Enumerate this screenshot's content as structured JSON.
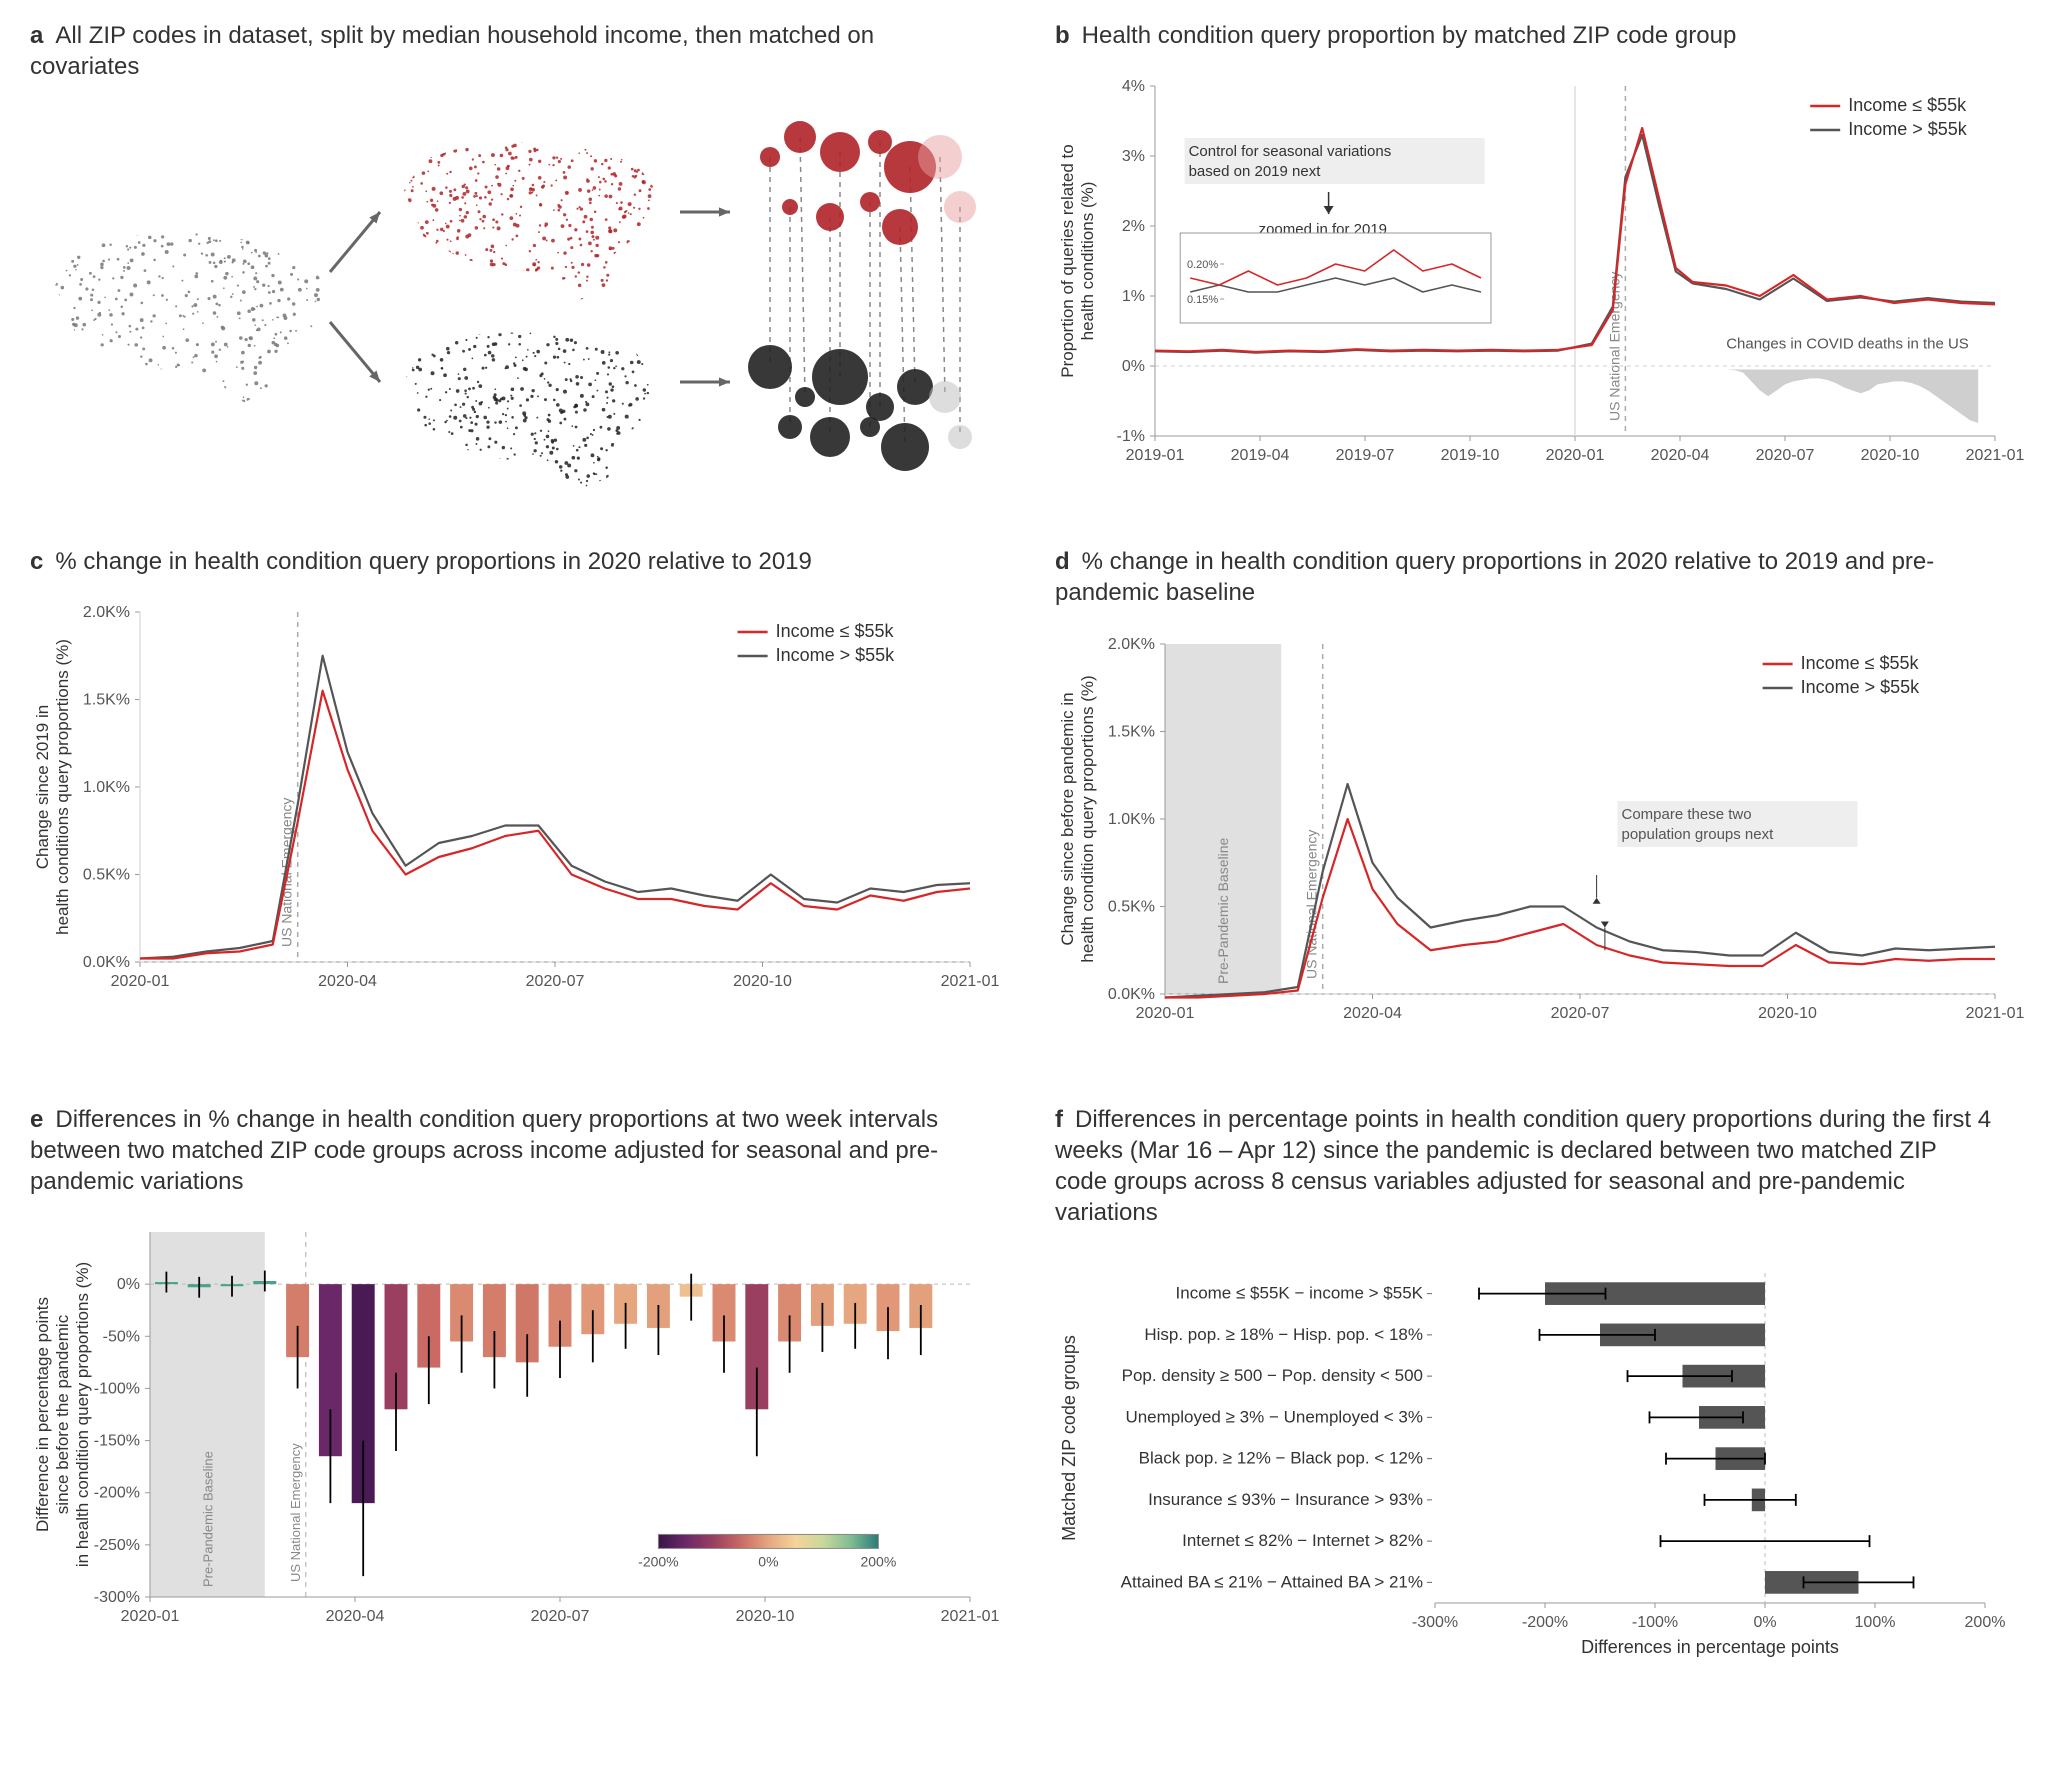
{
  "panels": {
    "a": {
      "label": "a",
      "title": "All ZIP codes in dataset, split by median household income, then matched on covariates"
    },
    "b": {
      "label": "b",
      "title": "Health condition query proportion by matched ZIP code group"
    },
    "c": {
      "label": "c",
      "title": "% change in health condition query proportions in 2020 relative to 2019"
    },
    "d": {
      "label": "d",
      "title": "% change in health condition query proportions in 2020 relative to 2019 and pre-pandemic baseline"
    },
    "e": {
      "label": "e",
      "title": "Differences in % change in health condition query proportions at two week intervals between two matched ZIP code groups across income adjusted for seasonal and pre-pandemic variations"
    },
    "f": {
      "label": "f",
      "title": "Differences in percentage points in health condition query proportions during the first 4 weeks (Mar 16 – Apr 12) since the pandemic is declared between two matched ZIP code groups across 8 census variables adjusted for seasonal and pre-pandemic variations"
    }
  },
  "colors": {
    "red": "#d62728",
    "gray_line": "#555555",
    "bg": "#ffffff",
    "axis": "#333333",
    "grid": "#cccccc",
    "shade": "#d3d3d3",
    "map_gray": "#777777",
    "map_red": "#b02428",
    "map_dark": "#222222",
    "annotation_bg": "#eeeeee",
    "covid_area": "#bbbbbb"
  },
  "legend": {
    "low": "Income ≤ $55k",
    "high": "Income > $55k"
  },
  "emergency_label": "US National Emergency",
  "baseline_label": "Pre-Pandemic Baseline",
  "panel_b": {
    "ylabel": "Proportion of queries related to health conditions (%)",
    "ylim": [
      -1,
      4
    ],
    "yticks": [
      "-1%",
      "0%",
      "1%",
      "2%",
      "3%",
      "4%"
    ],
    "xticks": [
      "2019-01",
      "2019-04",
      "2019-07",
      "2019-10",
      "2020-01",
      "2020-04",
      "2020-07",
      "2020-10",
      "2021-01"
    ],
    "annotation1": "Control for seasonal variations based on 2019 next",
    "annotation2": "zoomed in for 2019",
    "inset_yticks": [
      "0.15%",
      "0.20%"
    ],
    "covid_note": "Changes in COVID deaths in the US",
    "x": [
      0,
      0.04,
      0.08,
      0.12,
      0.16,
      0.2,
      0.24,
      0.28,
      0.32,
      0.36,
      0.4,
      0.44,
      0.48,
      0.52,
      0.545,
      0.56,
      0.58,
      0.6,
      0.62,
      0.64,
      0.68,
      0.72,
      0.76,
      0.8,
      0.84,
      0.88,
      0.92,
      0.96,
      1.0
    ],
    "low": [
      0.22,
      0.21,
      0.23,
      0.2,
      0.22,
      0.21,
      0.24,
      0.22,
      0.23,
      0.22,
      0.23,
      0.22,
      0.23,
      0.3,
      0.8,
      2.6,
      3.4,
      2.4,
      1.4,
      1.2,
      1.15,
      1.0,
      1.3,
      0.95,
      1.0,
      0.9,
      0.95,
      0.9,
      0.88
    ],
    "high": [
      0.21,
      0.2,
      0.22,
      0.19,
      0.21,
      0.2,
      0.23,
      0.21,
      0.22,
      0.21,
      0.22,
      0.21,
      0.22,
      0.32,
      0.85,
      2.7,
      3.3,
      2.3,
      1.35,
      1.18,
      1.1,
      0.95,
      1.25,
      0.93,
      0.98,
      0.92,
      0.97,
      0.92,
      0.9
    ],
    "inset": {
      "x": [
        0,
        0.1,
        0.2,
        0.3,
        0.4,
        0.5,
        0.6,
        0.7,
        0.8,
        0.9,
        1.0
      ],
      "low": [
        0.18,
        0.17,
        0.19,
        0.17,
        0.18,
        0.2,
        0.19,
        0.22,
        0.19,
        0.2,
        0.18
      ],
      "high": [
        0.16,
        0.17,
        0.16,
        0.16,
        0.17,
        0.18,
        0.17,
        0.18,
        0.16,
        0.17,
        0.16
      ]
    },
    "emergency_x": 0.56,
    "covid_dx": 0.01,
    "covid": [
      0,
      0,
      0,
      0,
      0,
      0,
      0,
      0,
      0,
      0,
      0,
      0,
      0,
      0.5,
      2,
      8,
      14,
      18,
      14,
      10,
      8,
      7,
      6,
      6,
      7,
      9,
      12,
      14,
      16,
      14,
      10,
      9,
      8,
      8,
      9,
      11,
      14,
      18,
      22,
      26,
      30,
      34,
      36
    ]
  },
  "panel_c": {
    "ylabel": "Change since 2019 in health conditions query proportions (%)",
    "ylim": [
      0,
      2.0
    ],
    "yticks": [
      "0.0K%",
      "0.5K%",
      "1.0K%",
      "1.5K%",
      "2.0K%"
    ],
    "xticks": [
      "2020-01",
      "2020-04",
      "2020-07",
      "2020-10",
      "2021-01"
    ],
    "emergency_x": 0.19,
    "x": [
      0,
      0.04,
      0.08,
      0.12,
      0.16,
      0.19,
      0.22,
      0.25,
      0.28,
      0.32,
      0.36,
      0.4,
      0.44,
      0.48,
      0.52,
      0.56,
      0.6,
      0.64,
      0.68,
      0.72,
      0.76,
      0.8,
      0.84,
      0.88,
      0.92,
      0.96,
      1.0
    ],
    "low": [
      0.02,
      0.02,
      0.05,
      0.06,
      0.1,
      0.8,
      1.55,
      1.1,
      0.75,
      0.5,
      0.6,
      0.65,
      0.72,
      0.75,
      0.5,
      0.42,
      0.36,
      0.36,
      0.32,
      0.3,
      0.45,
      0.32,
      0.3,
      0.38,
      0.35,
      0.4,
      0.42
    ],
    "high": [
      0.02,
      0.03,
      0.06,
      0.08,
      0.12,
      0.9,
      1.75,
      1.2,
      0.85,
      0.55,
      0.68,
      0.72,
      0.78,
      0.78,
      0.55,
      0.46,
      0.4,
      0.42,
      0.38,
      0.35,
      0.5,
      0.36,
      0.34,
      0.42,
      0.4,
      0.44,
      0.45
    ]
  },
  "panel_d": {
    "ylabel": "Change since before pandemic in health condition query proportions (%)",
    "ylim": [
      0,
      2.0
    ],
    "yticks": [
      "0.0K%",
      "0.5K%",
      "1.0K%",
      "1.5K%",
      "2.0K%"
    ],
    "xticks": [
      "2020-01",
      "2020-04",
      "2020-07",
      "2020-10",
      "2021-01"
    ],
    "annotation": "Compare these two population groups next",
    "baseline_range": [
      0.0,
      0.14
    ],
    "emergency_x": 0.19,
    "x": [
      0,
      0.04,
      0.08,
      0.12,
      0.16,
      0.19,
      0.22,
      0.25,
      0.28,
      0.32,
      0.36,
      0.4,
      0.44,
      0.48,
      0.52,
      0.56,
      0.6,
      0.64,
      0.68,
      0.72,
      0.76,
      0.8,
      0.84,
      0.88,
      0.92,
      0.96,
      1.0
    ],
    "low": [
      -0.02,
      -0.02,
      -0.01,
      0.0,
      0.02,
      0.55,
      1.0,
      0.6,
      0.4,
      0.25,
      0.28,
      0.3,
      0.35,
      0.4,
      0.28,
      0.22,
      0.18,
      0.17,
      0.16,
      0.16,
      0.28,
      0.18,
      0.17,
      0.2,
      0.19,
      0.2,
      0.2
    ],
    "high": [
      -0.02,
      -0.01,
      0.0,
      0.01,
      0.04,
      0.7,
      1.2,
      0.75,
      0.55,
      0.38,
      0.42,
      0.45,
      0.5,
      0.5,
      0.38,
      0.3,
      0.25,
      0.24,
      0.22,
      0.22,
      0.35,
      0.24,
      0.22,
      0.26,
      0.25,
      0.26,
      0.27
    ]
  },
  "panel_e": {
    "ylabel": "Difference in percentage points since before the pandemic in health condition query proportions (%)",
    "ylim": [
      -300,
      50
    ],
    "yticks": [
      "-300%",
      "-250%",
      "-200%",
      "-150%",
      "-100%",
      "-50%",
      "0%"
    ],
    "xticks": [
      "2020-01",
      "2020-04",
      "2020-07",
      "2020-10",
      "2021-01"
    ],
    "baseline_range": [
      0.0,
      0.14
    ],
    "emergency_x": 0.19,
    "colorbar_ticks": [
      "-200%",
      "0%",
      "200%"
    ],
    "bars": [
      {
        "x": 0.02,
        "v": 2,
        "lo": -8,
        "hi": 12,
        "c": "#4aa28a"
      },
      {
        "x": 0.06,
        "v": -3,
        "lo": -13,
        "hi": 7,
        "c": "#4aa28a"
      },
      {
        "x": 0.1,
        "v": -2,
        "lo": -12,
        "hi": 8,
        "c": "#4aa28a"
      },
      {
        "x": 0.14,
        "v": 3,
        "lo": -7,
        "hi": 13,
        "c": "#4aa28a"
      },
      {
        "x": 0.18,
        "v": -70,
        "lo": -100,
        "hi": -40,
        "c": "#d47d6a"
      },
      {
        "x": 0.22,
        "v": -165,
        "lo": -210,
        "hi": -120,
        "c": "#6b2869"
      },
      {
        "x": 0.26,
        "v": -210,
        "lo": -280,
        "hi": -150,
        "c": "#4a1a55"
      },
      {
        "x": 0.3,
        "v": -120,
        "lo": -160,
        "hi": -85,
        "c": "#9a3f60"
      },
      {
        "x": 0.34,
        "v": -80,
        "lo": -115,
        "hi": -50,
        "c": "#c96a65"
      },
      {
        "x": 0.38,
        "v": -55,
        "lo": -85,
        "hi": -30,
        "c": "#d98a70"
      },
      {
        "x": 0.42,
        "v": -70,
        "lo": -100,
        "hi": -45,
        "c": "#d47d6a"
      },
      {
        "x": 0.46,
        "v": -75,
        "lo": -108,
        "hi": -48,
        "c": "#d07868"
      },
      {
        "x": 0.5,
        "v": -60,
        "lo": -90,
        "hi": -35,
        "c": "#d88670"
      },
      {
        "x": 0.54,
        "v": -48,
        "lo": -75,
        "hi": -25,
        "c": "#e09878"
      },
      {
        "x": 0.58,
        "v": -38,
        "lo": -62,
        "hi": -18,
        "c": "#e5a680"
      },
      {
        "x": 0.62,
        "v": -42,
        "lo": -68,
        "hi": -20,
        "c": "#e3a07c"
      },
      {
        "x": 0.66,
        "v": -12,
        "lo": -35,
        "hi": 10,
        "c": "#eec090"
      },
      {
        "x": 0.7,
        "v": -55,
        "lo": -85,
        "hi": -30,
        "c": "#d98a70"
      },
      {
        "x": 0.74,
        "v": -120,
        "lo": -165,
        "hi": -80,
        "c": "#9a3f60"
      },
      {
        "x": 0.78,
        "v": -55,
        "lo": -85,
        "hi": -30,
        "c": "#d98a70"
      },
      {
        "x": 0.82,
        "v": -40,
        "lo": -65,
        "hi": -18,
        "c": "#e3a07c"
      },
      {
        "x": 0.86,
        "v": -38,
        "lo": -62,
        "hi": -18,
        "c": "#e5a680"
      },
      {
        "x": 0.9,
        "v": -45,
        "lo": -72,
        "hi": -22,
        "c": "#e09878"
      },
      {
        "x": 0.94,
        "v": -42,
        "lo": -68,
        "hi": -20,
        "c": "#e3a07c"
      }
    ],
    "colorbar_colors": [
      "#3a1548",
      "#6b2869",
      "#9a3f60",
      "#c96a65",
      "#e5a680",
      "#f5d49a",
      "#c8d89a",
      "#7fbd92",
      "#2a7a7a"
    ]
  },
  "panel_f": {
    "ylabel": "Matched ZIP code groups",
    "xlabel": "Differences in percentage points",
    "xlim": [
      -300,
      200
    ],
    "xticks": [
      "-300%",
      "-200%",
      "-100%",
      "0%",
      "100%",
      "200%"
    ],
    "bars": [
      {
        "label": "Income ≤ $55K − income > $55K",
        "v": -200,
        "lo": -260,
        "hi": -145
      },
      {
        "label": "Hisp. pop. ≥ 18% − Hisp. pop. < 18%",
        "v": -150,
        "lo": -205,
        "hi": -100
      },
      {
        "label": "Pop. density ≥ 500 − Pop. density < 500",
        "v": -75,
        "lo": -125,
        "hi": -30
      },
      {
        "label": "Unemployed ≥ 3% − Unemployed < 3%",
        "v": -60,
        "lo": -105,
        "hi": -20
      },
      {
        "label": "Black pop. ≥ 12% − Black pop. < 12%",
        "v": -45,
        "lo": -90,
        "hi": 0
      },
      {
        "label": "Insurance ≤ 93% − Insurance > 93%",
        "v": -12,
        "lo": -55,
        "hi": 28
      },
      {
        "label": "Internet ≤ 82% − Internet > 82%",
        "v": 0,
        "lo": -95,
        "hi": 95
      },
      {
        "label": "Attained BA ≤ 21% − Attained BA > 21%",
        "v": 85,
        "lo": 35,
        "hi": 135
      }
    ],
    "bar_color": "#555555"
  }
}
